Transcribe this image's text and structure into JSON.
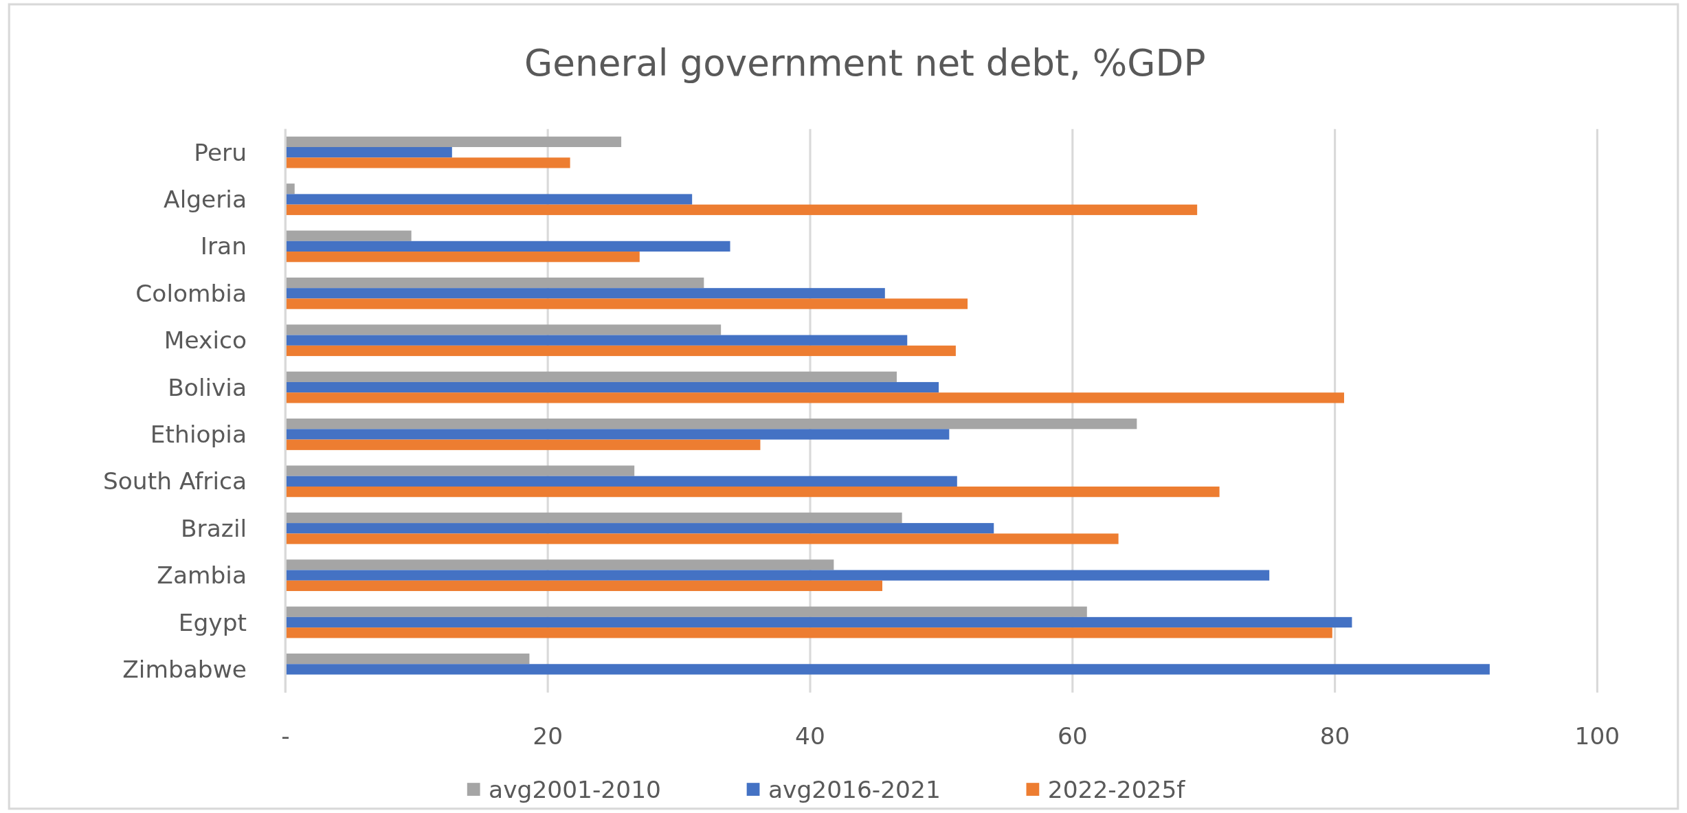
{
  "chart_data": {
    "type": "bar",
    "orientation": "horizontal",
    "title": "General government net debt, %GDP",
    "categories": [
      "Peru",
      "Algeria",
      "Iran",
      "Colombia",
      "Mexico",
      "Bolivia",
      "Ethiopia",
      "South Africa",
      "Brazil",
      "Zambia",
      "Egypt",
      "Zimbabwe"
    ],
    "series": [
      {
        "name": "avg2001-2010",
        "color": "#a5a5a5",
        "values": [
          25.6,
          0.7,
          9.6,
          31.9,
          33.2,
          46.6,
          64.9,
          26.6,
          47.0,
          41.8,
          61.1,
          18.6
        ]
      },
      {
        "name": "avg2016-2021",
        "color": "#4472c4",
        "values": [
          12.7,
          31.0,
          33.9,
          45.7,
          47.4,
          49.8,
          50.6,
          51.2,
          54.0,
          75.0,
          81.3,
          91.8
        ]
      },
      {
        "name": "2022-2025f",
        "color": "#ed7d31",
        "values": [
          21.7,
          69.5,
          27.0,
          52.0,
          51.1,
          80.7,
          36.2,
          71.2,
          63.5,
          45.5,
          79.8,
          null
        ]
      }
    ],
    "xlim": [
      0,
      100
    ],
    "xticks": [
      {
        "value": 0,
        "label": "-"
      },
      20,
      40,
      60,
      80,
      100
    ],
    "grid": "x",
    "legend": "bottom"
  }
}
